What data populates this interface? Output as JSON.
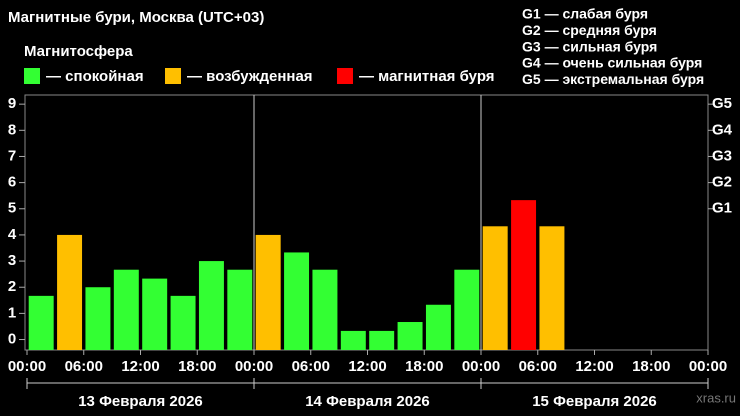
{
  "chart_data": {
    "type": "bar",
    "title": "Магнитные бури, Москва (UTC+03)",
    "legend_title": "Магнитосфера",
    "legend": [
      {
        "label": "— спокойная",
        "color": "#33ff33"
      },
      {
        "label": "— возбужденная",
        "color": "#ffbf00"
      },
      {
        "label": "— магнитная буря",
        "color": "#ff0000"
      }
    ],
    "g_scale": [
      "G1 — слабая буря",
      "G2 — средняя буря",
      "G3 — сильная буря",
      "G4 — очень сильная буря",
      "G5 — экстремальная буря"
    ],
    "x": [
      1.5,
      4.5,
      7.5,
      10.5,
      13.5,
      16.5,
      19.5,
      22.5,
      25.5,
      28.5,
      31.5,
      34.5,
      37.5,
      40.5,
      43.5,
      46.5,
      49.5,
      52.5,
      55.5
    ],
    "values": [
      1.67,
      4,
      2,
      2.67,
      2.33,
      1.67,
      3,
      2.67,
      4,
      3.33,
      2.67,
      0.33,
      0.33,
      0.67,
      1.33,
      2.67,
      4.33,
      5.33,
      4.33
    ],
    "colors": [
      "#33ff33",
      "#ffbf00",
      "#33ff33",
      "#33ff33",
      "#33ff33",
      "#33ff33",
      "#33ff33",
      "#33ff33",
      "#ffbf00",
      "#33ff33",
      "#33ff33",
      "#33ff33",
      "#33ff33",
      "#33ff33",
      "#33ff33",
      "#33ff33",
      "#ffbf00",
      "#ff0000",
      "#ffbf00"
    ],
    "xlim": [
      0,
      72
    ],
    "xticks": [
      {
        "value": 0,
        "label": "00:00"
      },
      {
        "value": 6,
        "label": "06:00"
      },
      {
        "value": 12,
        "label": "12:00"
      },
      {
        "value": 18,
        "label": "18:00"
      },
      {
        "value": 24,
        "label": "00:00"
      },
      {
        "value": 30,
        "label": "06:00"
      },
      {
        "value": 36,
        "label": "12:00"
      },
      {
        "value": 42,
        "label": "18:00"
      },
      {
        "value": 48,
        "label": "00:00"
      },
      {
        "value": 54,
        "label": "06:00"
      },
      {
        "value": 60,
        "label": "12:00"
      },
      {
        "value": 66,
        "label": "18:00"
      },
      {
        "value": 72,
        "label": "00:00"
      }
    ],
    "days": [
      {
        "start": 0,
        "end": 24,
        "label": "13 Февраля 2026"
      },
      {
        "start": 24,
        "end": 48,
        "label": "14 Февраля 2026"
      },
      {
        "start": 48,
        "end": 72,
        "label": "15 Февраля 2026"
      }
    ],
    "ylim": [
      -0.4,
      9.35
    ],
    "yticks": [
      0,
      1,
      2,
      3,
      4,
      5,
      6,
      7,
      8,
      9
    ],
    "y2lim": [
      -0.4,
      9.35
    ],
    "y2ticks": [
      {
        "value": 5,
        "label": "G1"
      },
      {
        "value": 6,
        "label": "G2"
      },
      {
        "value": 7,
        "label": "G3"
      },
      {
        "value": 8,
        "label": "G4"
      },
      {
        "value": 9,
        "label": "G5"
      }
    ],
    "watermark": "xras.ru"
  }
}
